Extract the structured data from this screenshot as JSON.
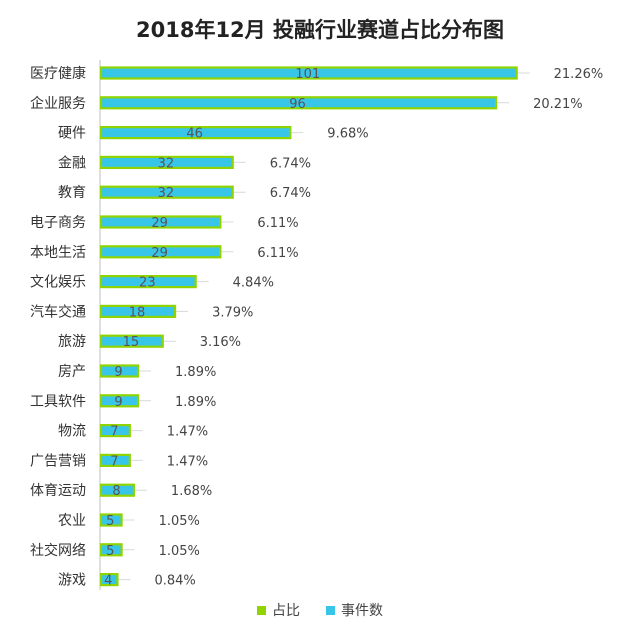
{
  "chart_data": {
    "type": "bar",
    "title": "2018年12月 投融行业赛道占比分布图",
    "categories": [
      "医疗健康",
      "企业服务",
      "硬件",
      "金融",
      "教育",
      "电子商务",
      "本地生活",
      "文化娱乐",
      "汽车交通",
      "旅游",
      "房产",
      "工具软件",
      "物流",
      "广告营销",
      "体育运动",
      "农业",
      "社交网络",
      "游戏"
    ],
    "series": [
      {
        "name": "事件数",
        "values": [
          101,
          96,
          46,
          32,
          32,
          29,
          29,
          23,
          18,
          15,
          9,
          9,
          7,
          7,
          8,
          5,
          5,
          4
        ]
      },
      {
        "name": "占比",
        "values": [
          "21.26%",
          "20.21%",
          "9.68%",
          "6.74%",
          "6.74%",
          "6.11%",
          "6.11%",
          "4.84%",
          "3.79%",
          "3.16%",
          "1.89%",
          "1.89%",
          "1.47%",
          "1.47%",
          "1.68%",
          "1.05%",
          "1.05%",
          "0.84%"
        ]
      }
    ],
    "legend": [
      {
        "name": "占比",
        "color": "#8fd400"
      },
      {
        "name": "事件数",
        "color": "#37c6e8"
      }
    ],
    "orientation": "horizontal",
    "xlim": [
      0,
      104
    ],
    "legend_position": "bottom",
    "colors": {
      "bar_outline": "#8fd400",
      "bar_fill": "#37c6e8"
    }
  }
}
